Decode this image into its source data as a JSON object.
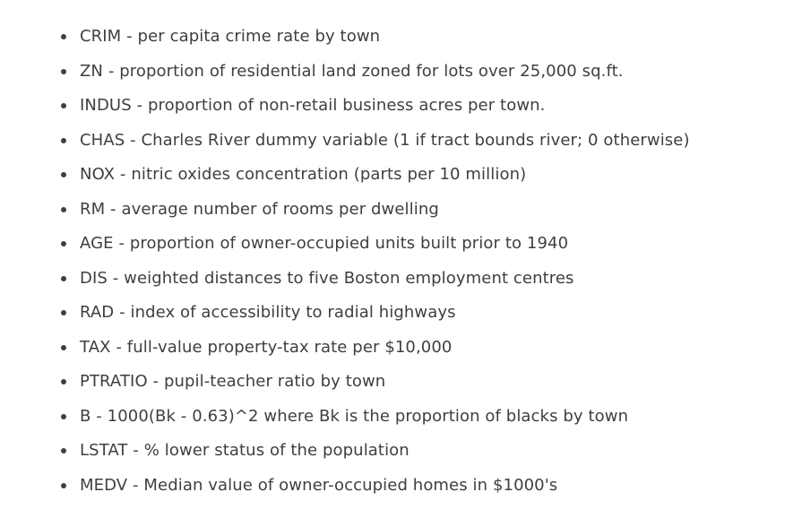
{
  "features": [
    {
      "text": "CRIM - per capita crime rate by town"
    },
    {
      "text": "ZN - proportion of residential land zoned for lots over 25,000 sq.ft."
    },
    {
      "text": "INDUS - proportion of non-retail business acres per town."
    },
    {
      "text": "CHAS - Charles River dummy variable (1 if tract bounds river; 0 otherwise)"
    },
    {
      "text": "NOX - nitric oxides concentration (parts per 10 million)"
    },
    {
      "text": "RM - average number of rooms per dwelling"
    },
    {
      "text": "AGE - proportion of owner-occupied units built prior to 1940"
    },
    {
      "text": "DIS - weighted distances to five Boston employment centres"
    },
    {
      "text": "RAD - index of accessibility to radial highways"
    },
    {
      "text": "TAX - full-value property-tax rate per $10,000"
    },
    {
      "text": "PTRATIO - pupil-teacher ratio by town"
    },
    {
      "text": "B - 1000(Bk - 0.63)^2 where Bk is the proportion of blacks by town"
    },
    {
      "text": "LSTAT - % lower status of the population"
    },
    {
      "text": "MEDV - Median value of owner-occupied homes in $1000's"
    }
  ]
}
